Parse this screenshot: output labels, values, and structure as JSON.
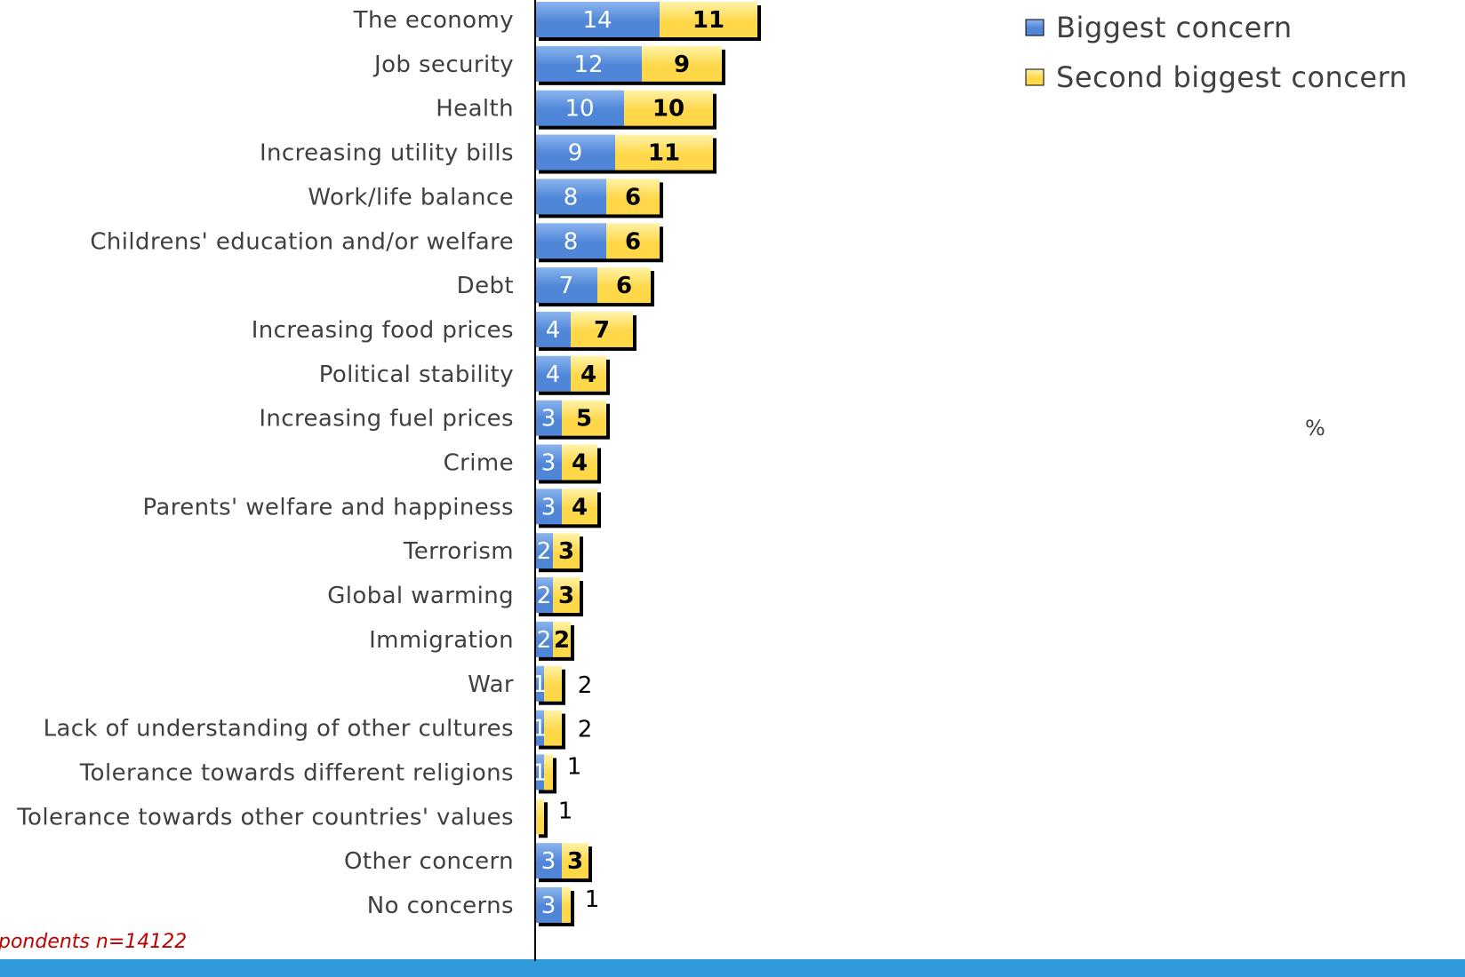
{
  "colors": {
    "blue": "#4f86d8",
    "blue_light": "#8ab4ee",
    "yellow": "#ffd84a",
    "yellow_light": "#fff3a8",
    "bottom_band": "#2f9ad8"
  },
  "footnote": "pondents n=14122",
  "unit_label": "%",
  "chart_data": {
    "type": "bar",
    "orientation": "horizontal",
    "stacked": true,
    "categories": [
      "The economy",
      "Job security",
      "Health",
      "Increasing utility bills",
      "Work/life balance",
      "Childrens' education and/or welfare",
      "Debt",
      "Increasing food prices",
      "Political stability",
      "Increasing fuel prices",
      "Crime",
      "Parents' welfare and happiness",
      "Terrorism",
      "Global warming",
      "Immigration",
      "War",
      "Lack of understanding of other cultures",
      "Tolerance towards different religions",
      "Tolerance towards other countries' values",
      "Other concern",
      "No concerns"
    ],
    "series": [
      {
        "name": "Biggest concern",
        "values": [
          14,
          12,
          10,
          9,
          8,
          8,
          7,
          4,
          4,
          3,
          3,
          3,
          2,
          2,
          2,
          1,
          1,
          1,
          0,
          3,
          3
        ],
        "labels": [
          "14",
          "12",
          "10",
          "9",
          "8",
          "8",
          "7",
          "4",
          "4",
          "3",
          "3",
          "3",
          "2",
          "2",
          "2",
          "1",
          "1",
          "1",
          "",
          "3",
          "3"
        ]
      },
      {
        "name": "Second biggest concern",
        "values": [
          11,
          9,
          10,
          11,
          6,
          6,
          6,
          7,
          4,
          5,
          4,
          4,
          3,
          3,
          2,
          2,
          2,
          1,
          1,
          3,
          1
        ],
        "labels": [
          "11",
          "9",
          "10",
          "11",
          "6",
          "6",
          "6",
          "7",
          "4",
          "5",
          "4",
          "4",
          "3",
          "3",
          "2",
          "2",
          "2",
          "1",
          "1",
          "3",
          "1"
        ]
      }
    ],
    "legend": "top-right",
    "grid": false
  }
}
